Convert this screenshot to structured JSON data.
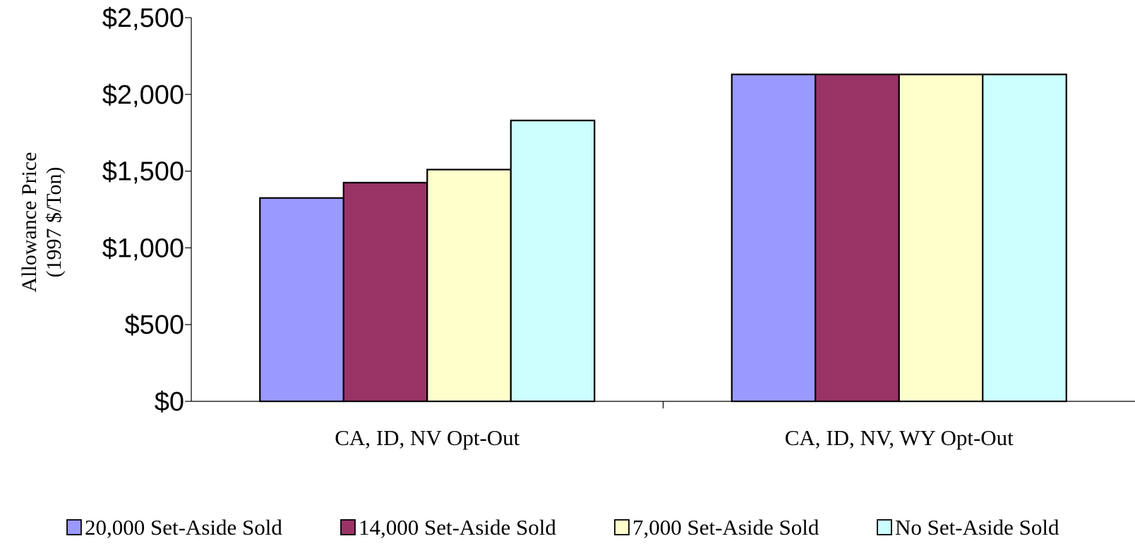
{
  "chart_data": {
    "type": "bar",
    "categories": [
      "CA, ID, NV Opt-Out",
      "CA, ID, NV, WY Opt-Out"
    ],
    "series": [
      {
        "name": "20,000 Set-Aside Sold",
        "values": [
          1325,
          2130
        ],
        "color": "#9999FF"
      },
      {
        "name": "14,000 Set-Aside Sold",
        "values": [
          1425,
          2130
        ],
        "color": "#993366"
      },
      {
        "name": "7,000 Set-Aside Sold",
        "values": [
          1510,
          2130
        ],
        "color": "#FFFFCC"
      },
      {
        "name": "No Set-Aside Sold",
        "values": [
          1830,
          2130
        ],
        "color": "#CCFFFF"
      }
    ],
    "ylabel_lines": [
      "Allowance Price",
      "(1997 $/Ton)"
    ],
    "xlabel": "",
    "ylim": [
      0,
      2500
    ],
    "yticks": [
      0,
      500,
      1000,
      1500,
      2000,
      2500
    ],
    "ytick_labels": [
      "$0",
      "$500",
      "$1,000",
      "$1,500",
      "$2,000",
      "$2,500"
    ],
    "grid": false,
    "legend_position": "bottom"
  }
}
